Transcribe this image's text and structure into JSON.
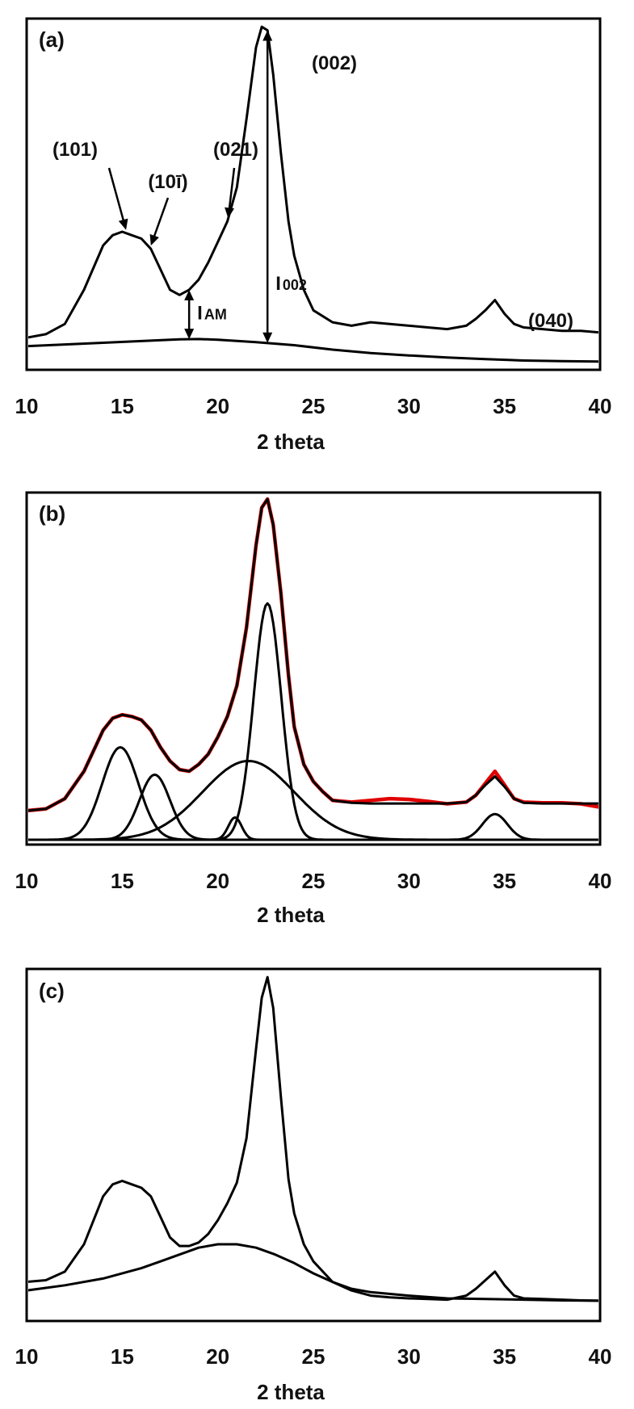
{
  "colors": {
    "trace": "#000000",
    "measured": "#e00000"
  },
  "chart_data": [
    {
      "type": "line",
      "panel": "(a)",
      "xlabel": "2 theta",
      "xlim": [
        10,
        40
      ],
      "xticks": [
        10,
        15,
        20,
        25,
        30,
        35,
        40
      ],
      "yaxis": "no tick labels",
      "ylim": [
        0,
        1
      ],
      "series": [
        {
          "role": "diffractogram",
          "color": "#000000",
          "x": [
            10,
            11,
            12,
            13,
            14,
            14.5,
            15,
            15.5,
            16,
            16.5,
            17,
            17.5,
            18,
            18.5,
            19,
            19.5,
            20,
            20.5,
            21,
            21.5,
            22,
            22.3,
            22.6,
            22.9,
            23.3,
            23.7,
            24,
            24.5,
            25,
            26,
            27,
            28,
            29,
            30,
            31,
            32,
            33,
            33.5,
            34,
            34.5,
            35,
            35.5,
            36,
            37,
            38,
            39,
            40
          ],
          "y": [
            0.08,
            0.09,
            0.12,
            0.22,
            0.35,
            0.38,
            0.39,
            0.38,
            0.37,
            0.34,
            0.28,
            0.22,
            0.205,
            0.22,
            0.25,
            0.3,
            0.36,
            0.42,
            0.52,
            0.72,
            0.93,
            0.99,
            0.98,
            0.85,
            0.62,
            0.42,
            0.32,
            0.22,
            0.16,
            0.125,
            0.115,
            0.125,
            0.12,
            0.115,
            0.11,
            0.105,
            0.115,
            0.135,
            0.16,
            0.19,
            0.15,
            0.12,
            0.11,
            0.105,
            0.1,
            0.1,
            0.095
          ]
        },
        {
          "role": "amorphous baseline",
          "color": "#000000",
          "x": [
            10,
            12,
            14,
            16,
            18,
            19,
            20,
            22,
            24,
            26,
            28,
            30,
            32,
            34,
            36,
            38,
            40
          ],
          "y": [
            0.055,
            0.06,
            0.065,
            0.07,
            0.075,
            0.076,
            0.074,
            0.067,
            0.058,
            0.045,
            0.035,
            0.028,
            0.022,
            0.017,
            0.013,
            0.011,
            0.01
          ]
        }
      ],
      "annotations": [
        {
          "text": "(101)",
          "points_to_x": 15.2
        },
        {
          "text": "(10ī)",
          "points_to_x": 16.5
        },
        {
          "text": "(021)",
          "points_to_x": 20.5
        },
        {
          "text": "(002)",
          "points_to_x": 22.6
        },
        {
          "text": "(040)",
          "points_to_x": 34.5
        },
        {
          "text": "I",
          "sub": "AM",
          "at_x": 18.5
        },
        {
          "text": "I",
          "sub": "002",
          "at_x": 22.6
        }
      ]
    },
    {
      "type": "line",
      "panel": "(b)",
      "xlabel": "2 theta",
      "xlim": [
        10,
        40
      ],
      "xticks": [
        10,
        15,
        20,
        25,
        30,
        35,
        40
      ],
      "yaxis": "no tick labels",
      "ylim": [
        0,
        1
      ],
      "series": [
        {
          "role": "measured",
          "color": "#e00000",
          "x": [
            10,
            11,
            12,
            13,
            14,
            14.5,
            15,
            15.5,
            16,
            16.5,
            17,
            17.5,
            18,
            18.5,
            19,
            19.5,
            20,
            20.5,
            21,
            21.5,
            22,
            22.3,
            22.6,
            22.9,
            23.3,
            23.7,
            24,
            24.5,
            25,
            25.5,
            26,
            27,
            28,
            29,
            30,
            31,
            32,
            33,
            33.5,
            34,
            34.5,
            35,
            35.5,
            36,
            37,
            38,
            39,
            40
          ],
          "y": [
            0.085,
            0.09,
            0.12,
            0.2,
            0.32,
            0.355,
            0.365,
            0.36,
            0.35,
            0.32,
            0.27,
            0.23,
            0.205,
            0.2,
            0.22,
            0.25,
            0.3,
            0.36,
            0.45,
            0.62,
            0.86,
            0.97,
            0.995,
            0.92,
            0.72,
            0.48,
            0.33,
            0.22,
            0.17,
            0.14,
            0.115,
            0.11,
            0.115,
            0.12,
            0.118,
            0.112,
            0.105,
            0.11,
            0.13,
            0.165,
            0.2,
            0.16,
            0.12,
            0.11,
            0.108,
            0.108,
            0.105,
            0.095
          ]
        },
        {
          "role": "fit envelope",
          "color": "#000000",
          "x": [
            10,
            11,
            12,
            13,
            14,
            14.5,
            15,
            15.5,
            16,
            16.5,
            17,
            17.5,
            18,
            18.5,
            19,
            19.5,
            20,
            20.5,
            21,
            21.5,
            22,
            22.3,
            22.6,
            22.9,
            23.3,
            23.7,
            24,
            24.5,
            25,
            25.5,
            26,
            27,
            28,
            29,
            30,
            31,
            32,
            33,
            33.5,
            34,
            34.5,
            35,
            35.5,
            36,
            37,
            38,
            39,
            40
          ],
          "y": [
            0.085,
            0.09,
            0.12,
            0.2,
            0.32,
            0.355,
            0.365,
            0.36,
            0.35,
            0.32,
            0.27,
            0.23,
            0.205,
            0.2,
            0.22,
            0.25,
            0.3,
            0.36,
            0.45,
            0.62,
            0.86,
            0.97,
            0.995,
            0.92,
            0.72,
            0.48,
            0.33,
            0.22,
            0.17,
            0.14,
            0.115,
            0.108,
            0.106,
            0.106,
            0.106,
            0.106,
            0.106,
            0.11,
            0.13,
            0.16,
            0.185,
            0.155,
            0.12,
            0.108,
            0.106,
            0.106,
            0.106,
            0.106
          ]
        },
        {
          "role": "component",
          "color": "#000000",
          "center": 14.9,
          "height": 0.27,
          "sigma": 0.95
        },
        {
          "role": "component",
          "color": "#000000",
          "center": 16.7,
          "height": 0.19,
          "sigma": 0.8
        },
        {
          "role": "component",
          "color": "#000000",
          "center": 20.9,
          "height": 0.065,
          "sigma": 0.35
        },
        {
          "role": "component",
          "color": "#000000",
          "center": 21.6,
          "height": 0.23,
          "sigma": 2.4
        },
        {
          "role": "component",
          "color": "#000000",
          "center": 22.6,
          "height": 0.69,
          "sigma": 0.72
        },
        {
          "role": "component",
          "color": "#000000",
          "center": 34.5,
          "height": 0.075,
          "sigma": 0.65
        }
      ]
    },
    {
      "type": "line",
      "panel": "(c)",
      "xlabel": "2 theta",
      "xlim": [
        10,
        40
      ],
      "xticks": [
        10,
        15,
        20,
        25,
        30,
        35,
        40
      ],
      "yaxis": "no tick labels",
      "ylim": [
        0,
        1
      ],
      "series": [
        {
          "role": "diffractogram",
          "color": "#000000",
          "x": [
            10,
            11,
            12,
            13,
            14,
            14.5,
            15,
            15.5,
            16,
            16.5,
            17,
            17.5,
            18,
            18.5,
            19,
            19.5,
            20,
            20.5,
            21,
            21.5,
            22,
            22.3,
            22.6,
            22.9,
            23.3,
            23.7,
            24,
            24.5,
            25,
            26,
            27,
            28,
            29,
            30,
            31,
            32,
            33,
            33.5,
            34,
            34.5,
            35,
            35.5,
            36,
            37,
            38,
            39,
            40
          ],
          "y": [
            0.1,
            0.105,
            0.13,
            0.21,
            0.35,
            0.385,
            0.395,
            0.385,
            0.375,
            0.35,
            0.29,
            0.23,
            0.205,
            0.205,
            0.215,
            0.24,
            0.28,
            0.33,
            0.39,
            0.52,
            0.78,
            0.93,
            0.99,
            0.9,
            0.64,
            0.4,
            0.3,
            0.21,
            0.16,
            0.1,
            0.075,
            0.06,
            0.055,
            0.052,
            0.05,
            0.048,
            0.06,
            0.08,
            0.105,
            0.13,
            0.09,
            0.06,
            0.052,
            0.05,
            0.048,
            0.046,
            0.045
          ]
        },
        {
          "role": "amorphous baseline",
          "color": "#000000",
          "x": [
            10,
            12,
            14,
            16,
            17,
            18,
            19,
            20,
            21,
            22,
            23,
            24,
            25,
            26,
            27,
            28,
            30,
            32,
            34,
            36,
            38,
            40
          ],
          "y": [
            0.075,
            0.09,
            0.11,
            0.14,
            0.16,
            0.18,
            0.2,
            0.21,
            0.21,
            0.2,
            0.18,
            0.155,
            0.125,
            0.1,
            0.08,
            0.07,
            0.06,
            0.052,
            0.05,
            0.048,
            0.046,
            0.045
          ]
        }
      ]
    }
  ]
}
